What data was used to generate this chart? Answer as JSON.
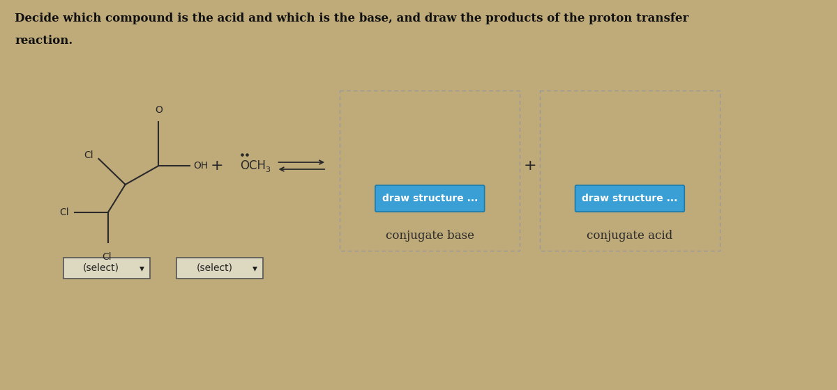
{
  "title_line1": "Decide which compound is the acid and which is the base, and draw the products of the proton transfer",
  "title_line2": "reaction.",
  "bg_color": "#bfaa7a",
  "title_color": "#111111",
  "button_color": "#3a9fd4",
  "button_text_color": "#ffffff",
  "button_text": "draw structure ...",
  "label_conj_base": "conjugate base",
  "label_conj_acid": "conjugate acid",
  "select_text": "(select)",
  "structure_line_color": "#2a2a2a",
  "label_color": "#2a2a2a",
  "dashed_box_color": "#888888",
  "figw": 12.0,
  "figh": 5.6,
  "dpi": 100
}
